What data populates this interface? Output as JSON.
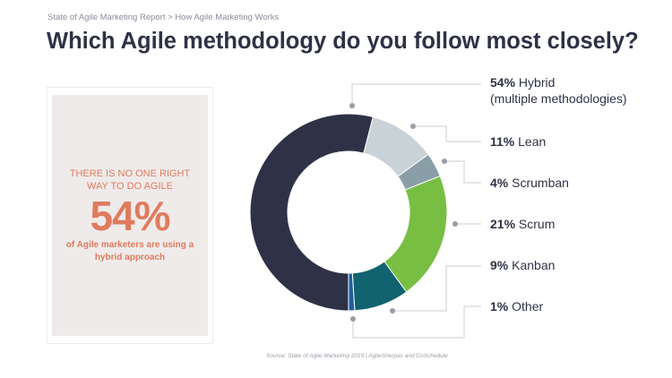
{
  "breadcrumb": "State of Agile Marketing Report  > How Agile Marketing Works",
  "title": "Which Agile methodology do you follow most closely?",
  "callout": {
    "line1": "THERE IS NO ONE RIGHT WAY TO DO AGILE",
    "big": "54%",
    "line2": "of Agile marketers are using a hybrid approach",
    "color": "#e07b5f"
  },
  "source": "Source: State of Agile Marketing 2019 | AgileSherpas and CoSchedule",
  "chart_data": {
    "type": "pie",
    "donut": true,
    "legend": "right",
    "series": [
      {
        "name": "Hybrid",
        "pct_label": "54%",
        "label": "Hybrid",
        "sublabel": "(multiple methodologies)",
        "value": 54,
        "color": "#2f3246"
      },
      {
        "name": "Lean",
        "pct_label": "11%",
        "label": "Lean",
        "value": 11,
        "color": "#c8d2d7"
      },
      {
        "name": "Scrumban",
        "pct_label": "4%",
        "label": "Scrumban",
        "value": 4,
        "color": "#8a9ea7"
      },
      {
        "name": "Scrum",
        "pct_label": "21%",
        "label": "Scrum",
        "value": 21,
        "color": "#78be43"
      },
      {
        "name": "Kanban",
        "pct_label": "9%",
        "label": "Kanban",
        "value": 9,
        "color": "#10636f"
      },
      {
        "name": "Other",
        "pct_label": "1%",
        "label": "Other",
        "value": 1,
        "color": "#1e5fa0"
      }
    ]
  }
}
